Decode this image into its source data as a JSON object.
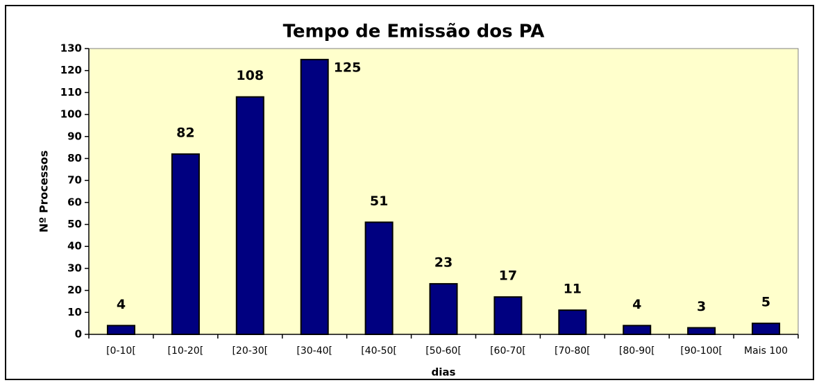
{
  "chart_data": {
    "type": "bar",
    "title": "Tempo de Emissão dos PA",
    "x_label": "dias",
    "y_label": "Nº Processos",
    "categories": [
      "[0-10[",
      "[10-20[",
      "[20-30[",
      "[30-40[",
      "[40-50[",
      "[50-60[",
      "[60-70[",
      "[70-80[",
      "[80-90[",
      "[90-100[",
      "Mais 100"
    ],
    "values": [
      4,
      82,
      108,
      125,
      51,
      23,
      17,
      11,
      4,
      3,
      5
    ],
    "color": "#000080",
    "ylim": [
      0,
      130
    ],
    "yticks": [
      0,
      10,
      20,
      30,
      40,
      50,
      60,
      70,
      80,
      90,
      100,
      110,
      120,
      130
    ],
    "grid": false
  }
}
